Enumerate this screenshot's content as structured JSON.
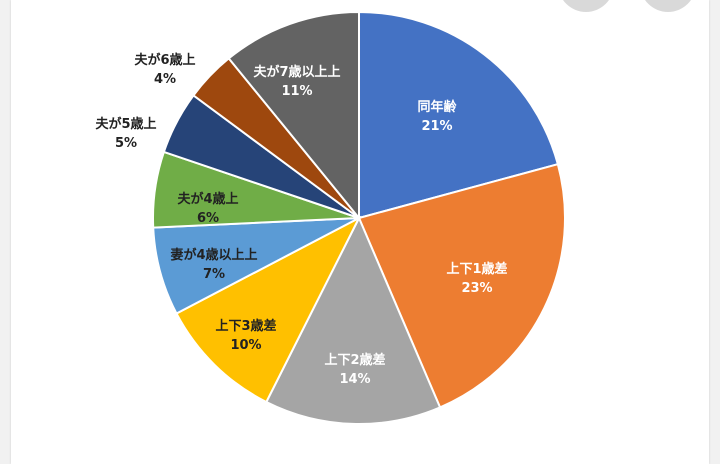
{
  "chart_data": {
    "type": "pie",
    "slices": [
      {
        "label": "同年齢",
        "value": 21,
        "percent_text": "21%",
        "color": "#4472c4",
        "text_color": "#ffffff"
      },
      {
        "label": "上下1歳差",
        "value": 23,
        "percent_text": "23%",
        "color": "#ed7d31",
        "text_color": "#ffffff"
      },
      {
        "label": "上下2歳差",
        "value": 14,
        "percent_text": "14%",
        "color": "#a5a5a5",
        "text_color": "#ffffff"
      },
      {
        "label": "上下3歳差",
        "value": 10,
        "percent_text": "10%",
        "color": "#ffc000",
        "text_color": "#222222"
      },
      {
        "label": "妻が4歳以上上",
        "value": 7,
        "percent_text": "7%",
        "color": "#5b9bd5",
        "text_color": "#222222"
      },
      {
        "label": "夫が4歳上",
        "value": 6,
        "percent_text": "6%",
        "color": "#70ad47",
        "text_color": "#222222"
      },
      {
        "label": "夫が5歳上",
        "value": 5,
        "percent_text": "5%",
        "color": "#264478",
        "text_color": "#222222"
      },
      {
        "label": "夫が6歳上",
        "value": 4,
        "percent_text": "4%",
        "color": "#9e480e",
        "text_color": "#222222"
      },
      {
        "label": "夫が7歳以上上",
        "value": 11,
        "percent_text": "11%",
        "color": "#636363",
        "text_color": "#ffffff"
      }
    ]
  }
}
